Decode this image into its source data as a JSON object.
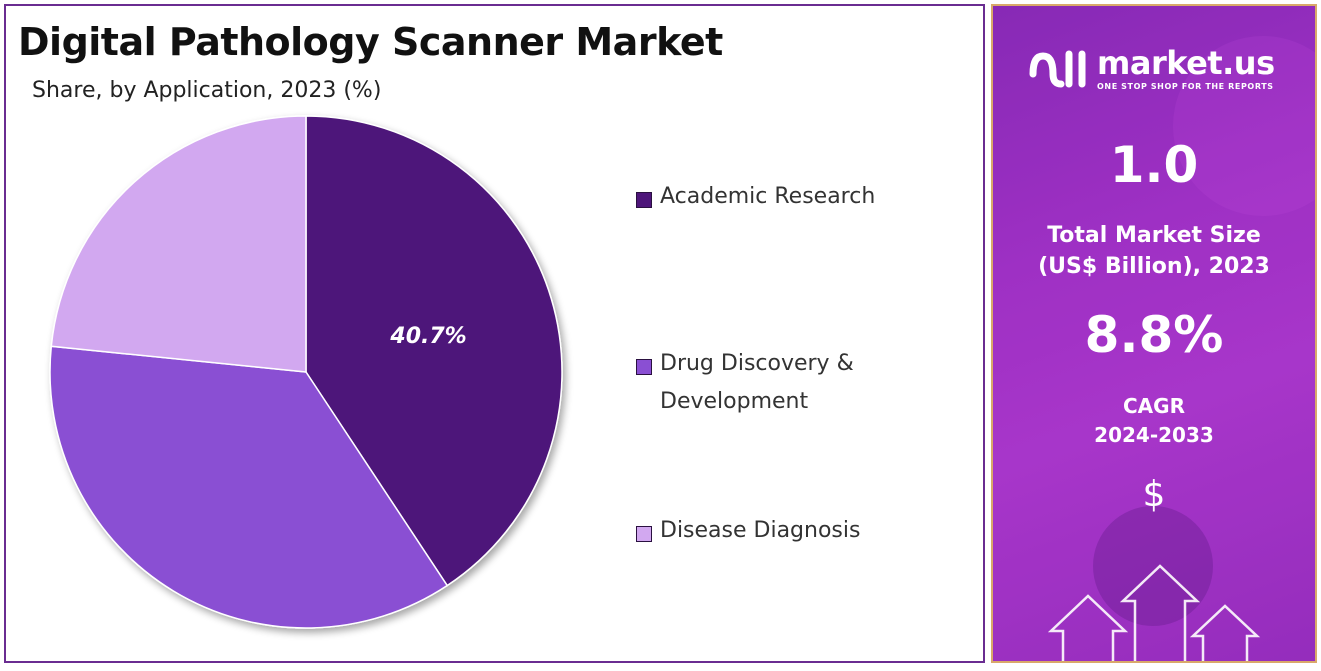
{
  "title": "Digital Pathology Scanner Market",
  "subtitle": "Share, by Application, 2023 (%)",
  "chart_data": {
    "type": "pie",
    "title": "Digital Pathology Scanner Market",
    "subtitle": "Share, by Application, 2023 (%)",
    "start_angle_deg": 0,
    "direction": "clockwise",
    "legend_position": "right",
    "slices": [
      {
        "label": "Academic Research",
        "value": 40.7,
        "color": "#4e157a",
        "data_label": "40.7%"
      },
      {
        "label": "Drug Discovery & Development",
        "value": 35.9,
        "color": "#8a4fd3",
        "data_label": ""
      },
      {
        "label": "Disease Diagnosis",
        "value": 23.4,
        "color": "#d2a8f0",
        "data_label": ""
      }
    ]
  },
  "legend": [
    {
      "label": "Academic Research",
      "color": "#4e157a"
    },
    {
      "label": "Drug Discovery & Development",
      "color": "#8a4fd3"
    },
    {
      "label": "Disease Diagnosis",
      "color": "#d2a8f0"
    }
  ],
  "sidebar": {
    "brand_name": "market.us",
    "brand_tagline": "ONE STOP SHOP FOR THE REPORTS",
    "market_size_value": "1.0",
    "market_size_label_line1": "Total Market Size",
    "market_size_label_line2": "(US$ Billion), 2023",
    "cagr_value": "8.8%",
    "cagr_label_line1": "CAGR",
    "cagr_label_line2": "2024-2033",
    "dollar_symbol": "$",
    "icons": [
      "market-us-logo-icon",
      "dollar-icon",
      "up-arrow-icon"
    ]
  }
}
